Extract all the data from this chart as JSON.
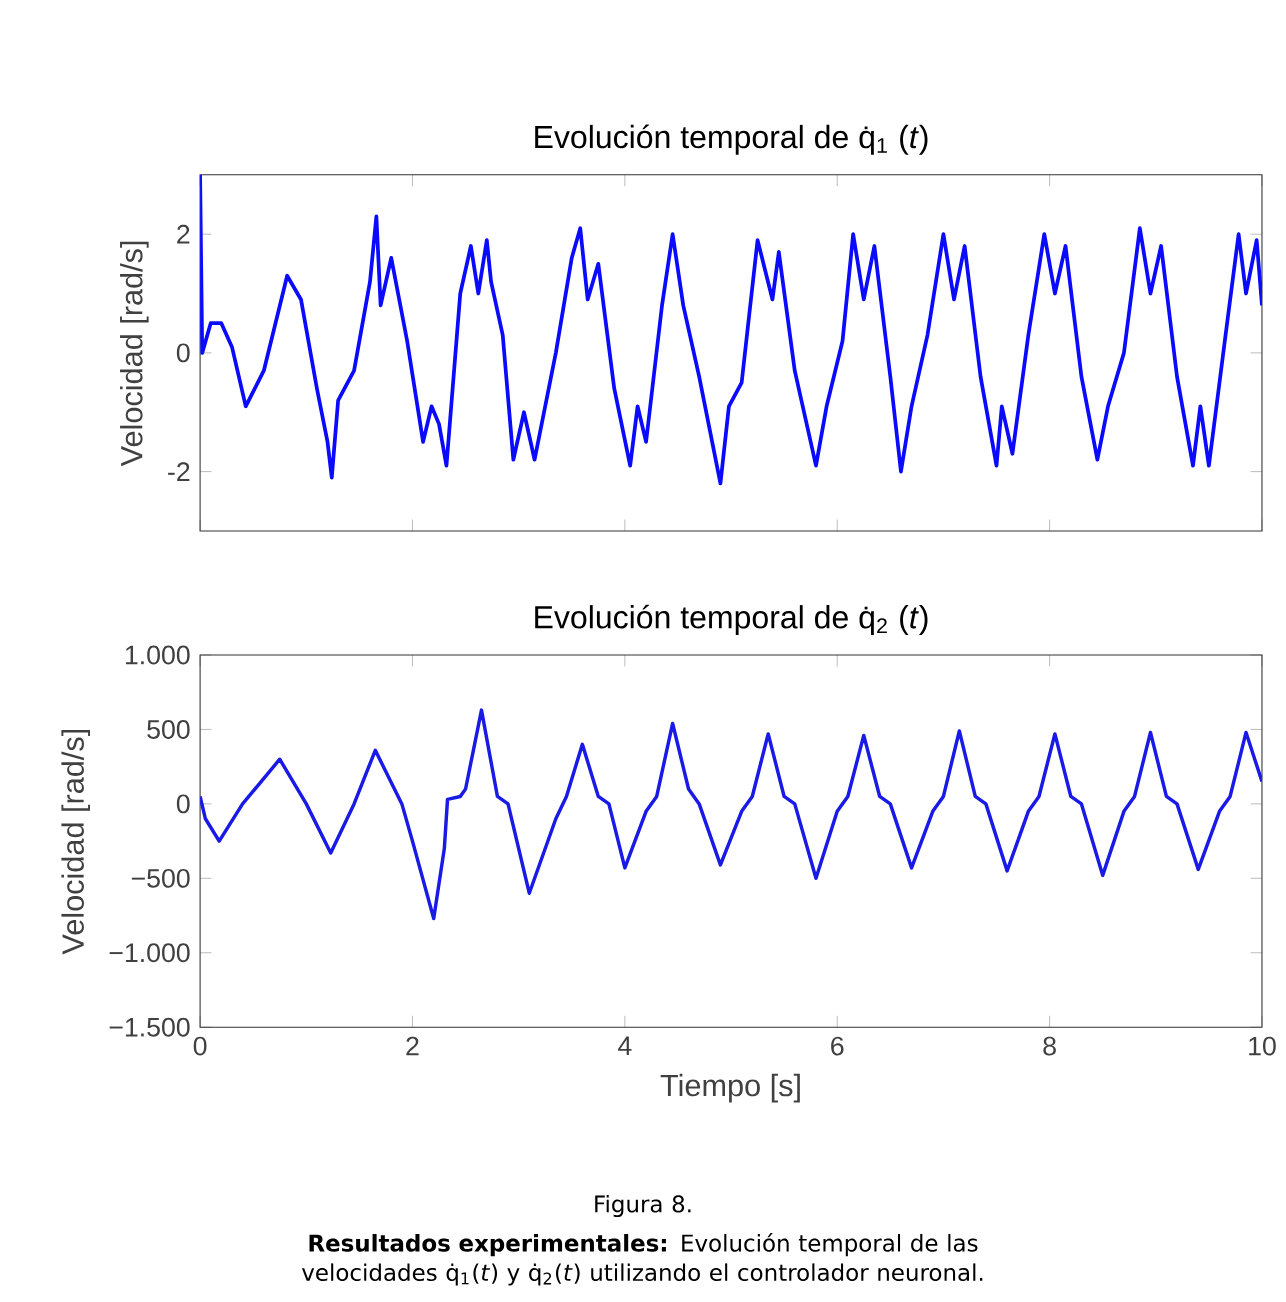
{
  "chart_data": [
    {
      "type": "line",
      "title": "Evolución temporal de q̇$_{1}$ (*t*)",
      "ylabel": "Velocidad [rad/s]",
      "xlim": [
        0,
        10
      ],
      "ylim": [
        -3,
        3
      ],
      "xticks": [
        {
          "value": 0,
          "label": null
        },
        {
          "value": 2,
          "label": null
        },
        {
          "value": 4,
          "label": null
        },
        {
          "value": 6,
          "label": null
        },
        {
          "value": 8,
          "label": null
        },
        {
          "value": 10,
          "label": null
        }
      ],
      "yticks": [
        -2,
        0,
        2
      ],
      "tick_labels": "y",
      "line_style": "solid",
      "series": [
        {
          "color": "#0a0aff",
          "x": [
            0,
            0.02,
            0.1,
            0.2,
            0.3,
            0.43,
            0.6,
            0.82,
            0.95,
            1.1,
            1.2,
            1.24,
            1.3,
            1.45,
            1.6,
            1.66,
            1.7,
            1.8,
            1.95,
            2.1,
            2.18,
            2.25,
            2.32,
            2.45,
            2.55,
            2.62,
            2.7,
            2.74,
            2.85,
            2.95,
            3.05,
            3.15,
            3.25,
            3.35,
            3.5,
            3.58,
            3.65,
            3.75,
            3.9,
            4.05,
            4.12,
            4.2,
            4.35,
            4.45,
            4.55,
            4.7,
            4.9,
            4.98,
            5.1,
            5.25,
            5.39,
            5.45,
            5.6,
            5.8,
            5.9,
            6.05,
            6.15,
            6.25,
            6.35,
            6.5,
            6.6,
            6.7,
            6.85,
            7.0,
            7.1,
            7.2,
            7.35,
            7.5,
            7.55,
            7.65,
            7.8,
            7.95,
            8.05,
            8.15,
            8.3,
            8.45,
            8.55,
            8.7,
            8.85,
            8.95,
            9.05,
            9.2,
            9.35,
            9.42,
            9.5,
            9.65,
            9.78,
            9.85,
            9.95,
            10
          ],
          "values": [
            3,
            0,
            0.5,
            0.5,
            0.1,
            -0.9,
            -0.3,
            1.3,
            0.9,
            -0.6,
            -1.5,
            -2.1,
            -0.8,
            -0.3,
            1.2,
            2.3,
            0.8,
            1.6,
            0.2,
            -1.5,
            -0.9,
            -1.2,
            -1.9,
            1.0,
            1.8,
            1.0,
            1.9,
            1.2,
            0.3,
            -1.8,
            -1.0,
            -1.8,
            -0.9,
            0.0,
            1.6,
            2.1,
            0.9,
            1.5,
            -0.6,
            -1.9,
            -0.9,
            -1.5,
            0.8,
            2.0,
            0.8,
            -0.4,
            -2.2,
            -0.9,
            -0.5,
            1.9,
            0.9,
            1.7,
            -0.3,
            -1.9,
            -0.9,
            0.2,
            2.0,
            0.9,
            1.8,
            -0.4,
            -2.0,
            -0.9,
            0.3,
            2.0,
            0.9,
            1.8,
            -0.4,
            -1.9,
            -0.9,
            -1.7,
            0.3,
            2.0,
            1.0,
            1.8,
            -0.4,
            -1.8,
            -0.9,
            0.0,
            2.1,
            1.0,
            1.8,
            -0.4,
            -1.9,
            -0.9,
            -1.9,
            0.2,
            2.0,
            1.0,
            1.9,
            0.8
          ]
        }
      ]
    },
    {
      "type": "line",
      "title": "Evolución temporal de q̇$_{2}$ (*t*)",
      "xlabel": "Tiempo [s]",
      "ylabel": "Velocidad [rad/s]",
      "xlim": [
        0,
        10
      ],
      "ylim": [
        -1500,
        1000
      ],
      "xticks": [
        0,
        2,
        4,
        6,
        8,
        10
      ],
      "yticks": [
        {
          "value": -1500,
          "label": "−1.500"
        },
        {
          "value": -1000,
          "label": "−1.000"
        },
        {
          "value": -500,
          "label": "−500"
        },
        0,
        500,
        {
          "value": 1000,
          "label": "1.000"
        }
      ],
      "line_style": "solid",
      "annotations": [
        "Figura 8.",
        "**Resultados experimentales:** Evolución temporal de las velocidades q̇$_{1}$(*t*) y q̇$_{2}$(*t*) utilizando el controlador neuronal."
      ],
      "series": [
        {
          "color": "#1a1ae6",
          "x": [
            0,
            0.05,
            0.18,
            0.4,
            0.75,
            1.0,
            1.23,
            1.45,
            1.65,
            1.9,
            2.0,
            2.2,
            2.3,
            2.33,
            2.45,
            2.5,
            2.65,
            2.8,
            2.9,
            3.1,
            3.35,
            3.45,
            3.6,
            3.75,
            3.85,
            4.0,
            4.2,
            4.3,
            4.45,
            4.6,
            4.7,
            4.9,
            5.1,
            5.2,
            5.35,
            5.5,
            5.6,
            5.8,
            6.0,
            6.1,
            6.25,
            6.4,
            6.5,
            6.7,
            6.9,
            7.0,
            7.15,
            7.3,
            7.4,
            7.6,
            7.8,
            7.9,
            8.05,
            8.2,
            8.3,
            8.5,
            8.7,
            8.8,
            8.95,
            9.1,
            9.2,
            9.4,
            9.6,
            9.7,
            9.85,
            10
          ],
          "values": [
            50,
            -100,
            -250,
            0,
            300,
            0,
            -330,
            0,
            360,
            0,
            -250,
            -770,
            -300,
            30,
            50,
            100,
            630,
            50,
            0,
            -600,
            -100,
            50,
            400,
            50,
            0,
            -430,
            -50,
            50,
            540,
            100,
            0,
            -410,
            -50,
            50,
            470,
            50,
            0,
            -500,
            -50,
            50,
            460,
            50,
            0,
            -430,
            -50,
            50,
            490,
            50,
            0,
            -450,
            -50,
            50,
            470,
            50,
            0,
            -480,
            -50,
            50,
            480,
            50,
            0,
            -440,
            -50,
            50,
            480,
            150
          ]
        }
      ]
    }
  ]
}
